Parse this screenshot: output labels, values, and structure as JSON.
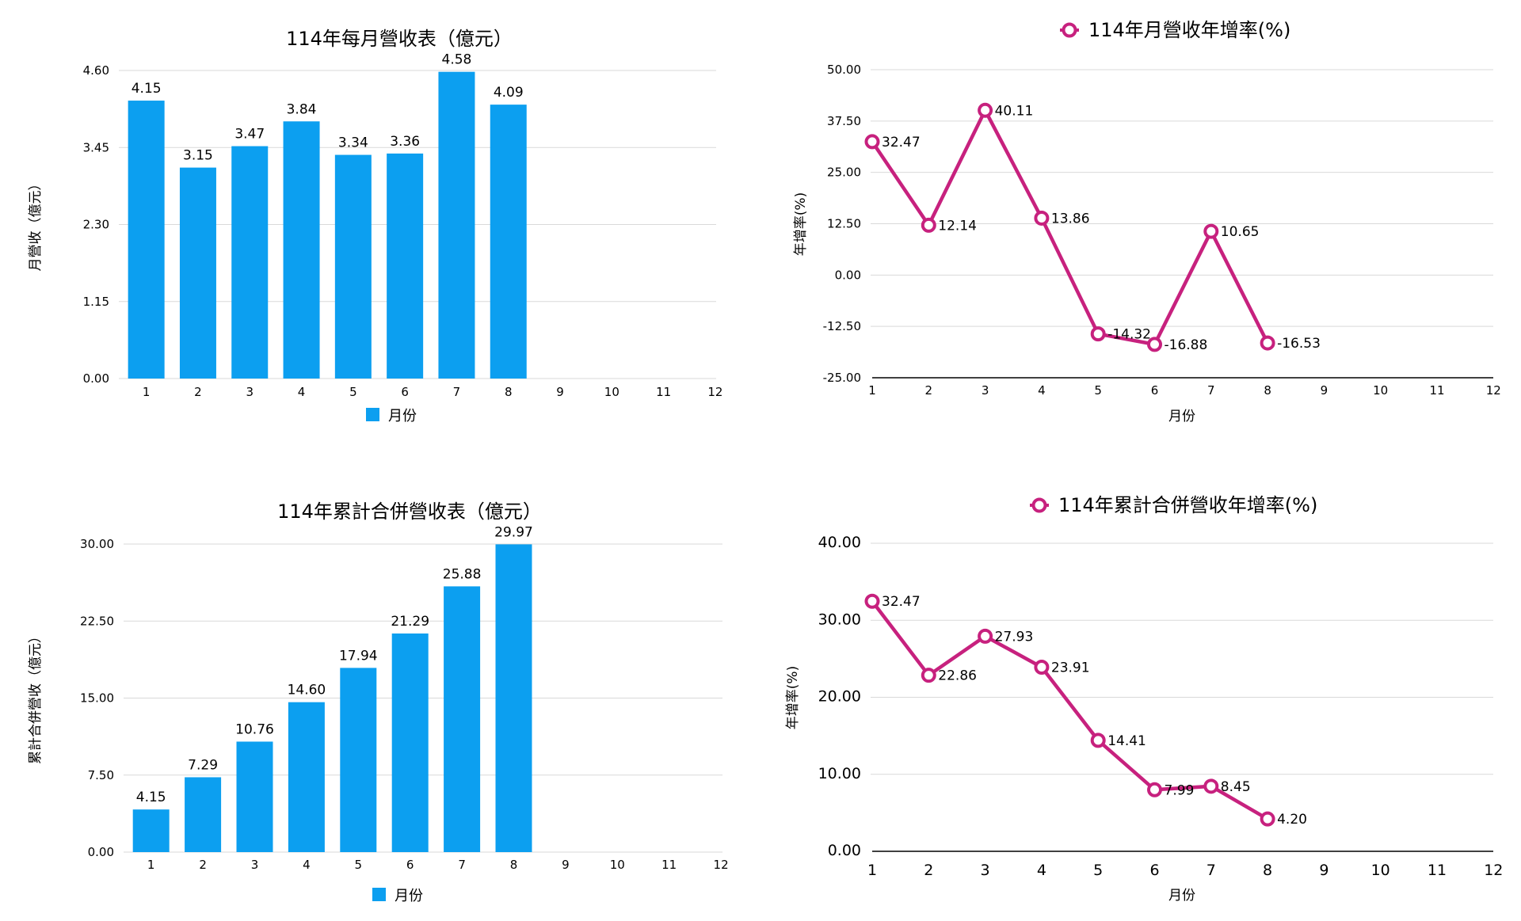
{
  "colors": {
    "bar": "#0c9ff0",
    "line": "#c7217e",
    "grid": "#d9d9d9"
  },
  "chart_data": [
    {
      "type": "bar",
      "title": "114年每月營收表（億元）",
      "ylabel": "月營收（億元）",
      "xlabel": "",
      "legend": "月份",
      "legend_position": "bottom",
      "grid": true,
      "categories": [
        "1",
        "2",
        "3",
        "4",
        "5",
        "6",
        "7",
        "8",
        "9",
        "10",
        "11",
        "12"
      ],
      "values": [
        4.15,
        3.15,
        3.47,
        3.84,
        3.34,
        3.36,
        4.58,
        4.09,
        null,
        null,
        null,
        null
      ],
      "ylim": [
        0,
        4.6
      ],
      "yticks": [
        "0.00",
        "1.15",
        "2.30",
        "3.45",
        "4.60"
      ]
    },
    {
      "type": "line",
      "title": "114年月營收年增率(%)",
      "ylabel": "年增率(%)",
      "xlabel": "月份",
      "legend": "114年月營收年增率(%)",
      "legend_position": "top",
      "grid": true,
      "categories": [
        "1",
        "2",
        "3",
        "4",
        "5",
        "6",
        "7",
        "8",
        "9",
        "10",
        "11",
        "12"
      ],
      "values": [
        32.47,
        12.14,
        40.11,
        13.86,
        -14.32,
        -16.88,
        10.65,
        -16.53,
        null,
        null,
        null,
        null
      ],
      "ylim": [
        -25,
        50
      ],
      "yticks": [
        "-25.00",
        "-12.50",
        "0.00",
        "12.50",
        "25.00",
        "37.50",
        "50.00"
      ]
    },
    {
      "type": "bar",
      "title": "114年累計合併營收表（億元）",
      "ylabel": "累計合併營收（億元）",
      "xlabel": "",
      "legend": "月份",
      "legend_position": "bottom",
      "grid": true,
      "categories": [
        "1",
        "2",
        "3",
        "4",
        "5",
        "6",
        "7",
        "8",
        "9",
        "10",
        "11",
        "12"
      ],
      "values": [
        4.15,
        7.29,
        10.76,
        14.6,
        17.94,
        21.29,
        25.88,
        29.97,
        null,
        null,
        null,
        null
      ],
      "ylim": [
        0,
        30
      ],
      "yticks": [
        "0.00",
        "7.50",
        "15.00",
        "22.50",
        "30.00"
      ]
    },
    {
      "type": "line",
      "title": "114年累計合併營收年增率(%)",
      "ylabel": "年增率(%)",
      "xlabel": "月份",
      "legend": "114年累計合併營收年增率(%)",
      "legend_position": "top",
      "grid": true,
      "categories": [
        "1",
        "2",
        "3",
        "4",
        "5",
        "6",
        "7",
        "8",
        "9",
        "10",
        "11",
        "12"
      ],
      "values": [
        32.47,
        22.86,
        27.93,
        23.91,
        14.41,
        7.99,
        8.45,
        4.2,
        null,
        null,
        null,
        null
      ],
      "ylim": [
        0,
        40
      ],
      "yticks": [
        "0.00",
        "10.00",
        "20.00",
        "30.00",
        "40.00"
      ]
    }
  ]
}
